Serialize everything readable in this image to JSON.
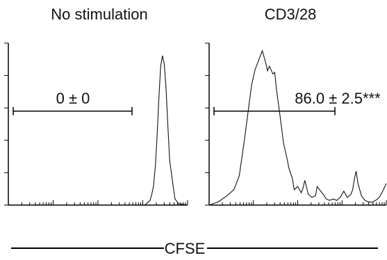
{
  "chart_data": [
    {
      "type": "histogram",
      "panel_title": "No stimulation",
      "gate_annotation": "0 ± 0",
      "x_scale": "log",
      "y_scale": "linear",
      "grid": false,
      "axes": "left and bottom only",
      "x_ticks": "unlabeled log ticks",
      "y_ticks": "unlabeled linear ticks",
      "gate_range_fraction": [
        0.0,
        0.69
      ],
      "gate_level_fraction": 0.58,
      "curve_x_fraction": [
        0.76,
        0.77,
        0.79,
        0.8,
        0.81,
        0.82,
        0.83,
        0.84,
        0.85,
        0.86,
        0.87,
        0.88,
        0.89,
        0.9,
        0.92,
        0.93,
        0.95,
        1.0
      ],
      "curve_y_fraction": [
        0.0,
        0.01,
        0.03,
        0.07,
        0.13,
        0.26,
        0.46,
        0.72,
        0.93,
        1.0,
        0.94,
        0.78,
        0.53,
        0.3,
        0.12,
        0.04,
        0.01,
        0.0
      ]
    },
    {
      "type": "histogram",
      "panel_title": "CD3/28",
      "gate_annotation": "86.0 ± 2.5***",
      "x_scale": "log",
      "y_scale": "linear",
      "grid": false,
      "axes": "left and bottom only",
      "x_ticks": "unlabeled log ticks",
      "y_ticks": "unlabeled linear ticks",
      "gate_range_fraction": [
        0.0,
        0.71
      ],
      "gate_level_fraction": 0.58,
      "curve_x_fraction": [
        0.0,
        0.05,
        0.1,
        0.14,
        0.17,
        0.2,
        0.24,
        0.26,
        0.28,
        0.3,
        0.32,
        0.33,
        0.34,
        0.36,
        0.37,
        0.38,
        0.4,
        0.42,
        0.44,
        0.45,
        0.47,
        0.48,
        0.5,
        0.52,
        0.53,
        0.54,
        0.56,
        0.58,
        0.6,
        0.61,
        0.63,
        0.65,
        0.66,
        0.68,
        0.7,
        0.72,
        0.74,
        0.76,
        0.78,
        0.8,
        0.81,
        0.82,
        0.83,
        0.84,
        0.86,
        0.88,
        0.9,
        0.92,
        0.94,
        0.96,
        0.98,
        1.0
      ],
      "curve_y_fraction": [
        0.0,
        0.02,
        0.06,
        0.1,
        0.19,
        0.43,
        0.78,
        0.88,
        0.94,
        1.0,
        0.92,
        0.87,
        0.9,
        0.85,
        0.86,
        0.75,
        0.58,
        0.4,
        0.3,
        0.24,
        0.17,
        0.1,
        0.12,
        0.08,
        0.11,
        0.16,
        0.07,
        0.05,
        0.06,
        0.12,
        0.09,
        0.06,
        0.04,
        0.03,
        0.04,
        0.03,
        0.05,
        0.09,
        0.05,
        0.07,
        0.1,
        0.17,
        0.22,
        0.14,
        0.06,
        0.03,
        0.02,
        0.02,
        0.03,
        0.05,
        0.09,
        0.14
      ]
    }
  ],
  "shared_x_label": "CFSE"
}
